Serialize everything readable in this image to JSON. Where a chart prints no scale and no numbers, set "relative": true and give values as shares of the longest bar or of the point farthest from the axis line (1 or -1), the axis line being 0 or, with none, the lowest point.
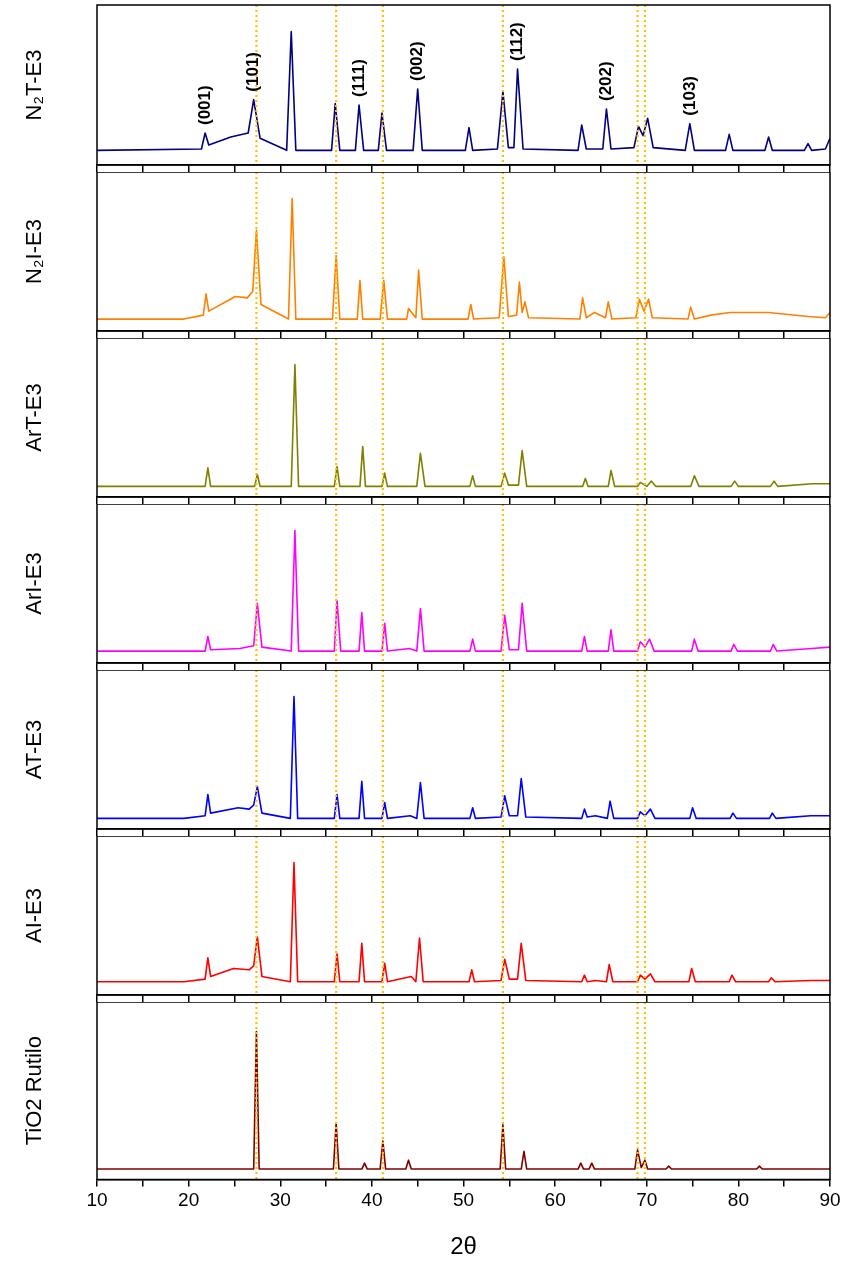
{
  "chart_data": [
    {
      "type": "line",
      "ylabel": "N₂T-E3",
      "relative": true,
      "marker": "none",
      "xlim": [
        10,
        90
      ],
      "xticks": [
        10,
        {
          "value": 15,
          "label": null
        },
        20,
        {
          "value": 25,
          "label": null
        },
        30,
        {
          "value": 35,
          "label": null
        },
        40,
        {
          "value": 45,
          "label": null
        },
        50,
        {
          "value": 55,
          "label": null
        },
        60,
        {
          "value": 65,
          "label": null
        },
        70,
        {
          "value": 75,
          "label": null
        },
        80,
        {
          "value": 85,
          "label": null
        },
        90
      ],
      "tick_labels": false,
      "ref_lines": [
        {
          "axis": "x",
          "value": 27.4,
          "color": "#ffc000",
          "line_style": "dotted"
        },
        {
          "axis": "x",
          "value": 36.1,
          "color": "#ffc000",
          "line_style": "dotted"
        },
        {
          "axis": "x",
          "value": 41.2,
          "color": "#ffc000",
          "line_style": "dotted"
        },
        {
          "axis": "x",
          "value": 54.3,
          "color": "#ffc000",
          "line_style": "dotted"
        },
        {
          "axis": "x",
          "value": 69.0,
          "color": "#ffc000",
          "line_style": "dotted"
        },
        {
          "axis": "x",
          "value": 69.8,
          "color": "#ffc000",
          "line_style": "dotted"
        }
      ],
      "annotations": [
        {
          "text": "(001)",
          "x": 21.8,
          "y": 0.24
        },
        {
          "text": "(101)",
          "x": 27.1,
          "y": 0.49
        },
        {
          "text": "(111)",
          "x": 38.6,
          "y": 0.45
        },
        {
          "text": "(002)",
          "x": 45.0,
          "y": 0.57
        },
        {
          "text": "(112)",
          "x": 55.9,
          "y": 0.72
        },
        {
          "text": "(202)",
          "x": 65.6,
          "y": 0.42
        },
        {
          "text": "(103)",
          "x": 74.7,
          "y": 0.31
        }
      ],
      "series": [
        {
          "color": "#000080",
          "x": [
            10,
            21.4,
            21.8,
            22.2,
            24.6,
            26.5,
            27.1,
            27.8,
            30.7,
            31.2,
            31.7,
            35.6,
            36.0,
            36.5,
            38.2,
            38.6,
            39.1,
            40.7,
            41.1,
            41.6,
            44.5,
            45.0,
            45.5,
            50.2,
            50.6,
            51.0,
            53.7,
            54.3,
            54.9,
            55.5,
            55.9,
            56.5,
            62.5,
            62.9,
            63.4,
            65.2,
            65.6,
            66.1,
            68.6,
            69.1,
            69.6,
            70.1,
            70.7,
            74.2,
            74.7,
            75.2,
            78.6,
            79.0,
            79.4,
            82.9,
            83.3,
            83.7,
            87.2,
            87.6,
            88.0,
            89.5,
            90
          ],
          "values": [
            0.11,
            0.12,
            0.24,
            0.15,
            0.21,
            0.24,
            0.49,
            0.2,
            0.11,
            1.0,
            0.11,
            0.11,
            0.46,
            0.11,
            0.11,
            0.45,
            0.11,
            0.11,
            0.39,
            0.11,
            0.11,
            0.57,
            0.11,
            0.11,
            0.28,
            0.11,
            0.12,
            0.55,
            0.13,
            0.13,
            0.72,
            0.12,
            0.11,
            0.3,
            0.12,
            0.12,
            0.42,
            0.12,
            0.13,
            0.29,
            0.22,
            0.35,
            0.13,
            0.11,
            0.31,
            0.11,
            0.11,
            0.23,
            0.11,
            0.11,
            0.21,
            0.11,
            0.11,
            0.16,
            0.11,
            0.12,
            0.2
          ]
        }
      ]
    },
    {
      "type": "line",
      "ylabel": "N₂I-E3",
      "relative": true,
      "marker": "none",
      "xlim": [
        10,
        90
      ],
      "xticks": [
        10,
        {
          "value": 15,
          "label": null
        },
        20,
        {
          "value": 25,
          "label": null
        },
        30,
        {
          "value": 35,
          "label": null
        },
        40,
        {
          "value": 45,
          "label": null
        },
        50,
        {
          "value": 55,
          "label": null
        },
        60,
        {
          "value": 65,
          "label": null
        },
        70,
        {
          "value": 75,
          "label": null
        },
        80,
        {
          "value": 85,
          "label": null
        },
        90
      ],
      "tick_labels": false,
      "ref_lines": [
        {
          "axis": "x",
          "value": 27.4,
          "color": "#ffc000",
          "line_style": "dotted"
        },
        {
          "axis": "x",
          "value": 36.1,
          "color": "#ffc000",
          "line_style": "dotted"
        },
        {
          "axis": "x",
          "value": 41.2,
          "color": "#ffc000",
          "line_style": "dotted"
        },
        {
          "axis": "x",
          "value": 54.3,
          "color": "#ffc000",
          "line_style": "dotted"
        },
        {
          "axis": "x",
          "value": 69.0,
          "color": "#ffc000",
          "line_style": "dotted"
        },
        {
          "axis": "x",
          "value": 69.8,
          "color": "#ffc000",
          "line_style": "dotted"
        }
      ],
      "series": [
        {
          "color": "#ff8000",
          "x": [
            10,
            19.5,
            21.6,
            21.9,
            22.2,
            25.1,
            26.4,
            27.0,
            27.4,
            27.9,
            30.9,
            31.3,
            31.7,
            35.7,
            36.1,
            36.5,
            38.4,
            38.7,
            39.0,
            40.9,
            41.3,
            41.7,
            43.8,
            44.0,
            44.8,
            45.1,
            45.5,
            50.5,
            50.8,
            51.1,
            53.9,
            54.4,
            54.9,
            55.8,
            56.1,
            56.4,
            56.7,
            57.1,
            62.7,
            63.0,
            63.4,
            64.3,
            65.5,
            65.8,
            66.2,
            68.8,
            69.2,
            69.7,
            70.2,
            70.6,
            74.5,
            74.8,
            75.2,
            77.0,
            79.1,
            83.3,
            87.6,
            89.5,
            90
          ],
          "values": [
            0.09,
            0.09,
            0.12,
            0.28,
            0.15,
            0.26,
            0.25,
            0.3,
            0.76,
            0.2,
            0.09,
            1.0,
            0.09,
            0.09,
            0.57,
            0.09,
            0.09,
            0.38,
            0.09,
            0.09,
            0.38,
            0.09,
            0.09,
            0.17,
            0.1,
            0.46,
            0.09,
            0.09,
            0.2,
            0.09,
            0.1,
            0.56,
            0.11,
            0.12,
            0.37,
            0.14,
            0.22,
            0.1,
            0.09,
            0.25,
            0.1,
            0.14,
            0.1,
            0.22,
            0.09,
            0.1,
            0.24,
            0.15,
            0.24,
            0.1,
            0.09,
            0.18,
            0.09,
            0.12,
            0.14,
            0.14,
            0.11,
            0.1,
            0.14
          ]
        }
      ]
    },
    {
      "type": "line",
      "ylabel": "ArT-E3",
      "relative": true,
      "marker": "none",
      "xlim": [
        10,
        90
      ],
      "xticks": [
        10,
        {
          "value": 15,
          "label": null
        },
        20,
        {
          "value": 25,
          "label": null
        },
        30,
        {
          "value": 35,
          "label": null
        },
        40,
        {
          "value": 45,
          "label": null
        },
        50,
        {
          "value": 55,
          "label": null
        },
        60,
        {
          "value": 65,
          "label": null
        },
        70,
        {
          "value": 75,
          "label": null
        },
        80,
        {
          "value": 85,
          "label": null
        },
        90
      ],
      "tick_labels": false,
      "ref_lines": [
        {
          "axis": "x",
          "value": 27.4,
          "color": "#ffc000",
          "line_style": "dotted"
        },
        {
          "axis": "x",
          "value": 36.1,
          "color": "#ffc000",
          "line_style": "dotted"
        },
        {
          "axis": "x",
          "value": 41.2,
          "color": "#ffc000",
          "line_style": "dotted"
        },
        {
          "axis": "x",
          "value": 54.3,
          "color": "#ffc000",
          "line_style": "dotted"
        },
        {
          "axis": "x",
          "value": 69.0,
          "color": "#ffc000",
          "line_style": "dotted"
        },
        {
          "axis": "x",
          "value": 69.8,
          "color": "#ffc000",
          "line_style": "dotted"
        }
      ],
      "series": [
        {
          "color": "#808000",
          "x": [
            10,
            21.8,
            22.1,
            22.4,
            27.2,
            27.5,
            27.8,
            31.2,
            31.6,
            32.0,
            35.9,
            36.2,
            36.5,
            38.7,
            39.0,
            39.3,
            41.1,
            41.4,
            41.7,
            44.9,
            45.3,
            45.8,
            50.7,
            51.0,
            51.3,
            54.1,
            54.5,
            54.9,
            56.0,
            56.4,
            56.9,
            63.0,
            63.3,
            63.6,
            65.8,
            66.1,
            66.5,
            69.0,
            69.3,
            70.0,
            70.5,
            71.0,
            74.8,
            75.2,
            75.7,
            79.2,
            79.6,
            80.0,
            83.5,
            83.9,
            84.3,
            88.1,
            90
          ],
          "values": [
            0.08,
            0.08,
            0.22,
            0.08,
            0.08,
            0.17,
            0.08,
            0.08,
            1.0,
            0.08,
            0.08,
            0.23,
            0.08,
            0.08,
            0.38,
            0.08,
            0.08,
            0.18,
            0.08,
            0.08,
            0.33,
            0.08,
            0.08,
            0.16,
            0.08,
            0.08,
            0.18,
            0.09,
            0.09,
            0.35,
            0.08,
            0.08,
            0.14,
            0.08,
            0.08,
            0.2,
            0.08,
            0.08,
            0.11,
            0.08,
            0.12,
            0.08,
            0.08,
            0.16,
            0.08,
            0.08,
            0.12,
            0.08,
            0.08,
            0.12,
            0.08,
            0.1,
            0.1
          ]
        }
      ]
    },
    {
      "type": "line",
      "ylabel": "ArI-E3",
      "relative": true,
      "marker": "none",
      "xlim": [
        10,
        90
      ],
      "xticks": [
        10,
        {
          "value": 15,
          "label": null
        },
        20,
        {
          "value": 25,
          "label": null
        },
        30,
        {
          "value": 35,
          "label": null
        },
        40,
        {
          "value": 45,
          "label": null
        },
        50,
        {
          "value": 55,
          "label": null
        },
        60,
        {
          "value": 65,
          "label": null
        },
        70,
        {
          "value": 75,
          "label": null
        },
        80,
        {
          "value": 85,
          "label": null
        },
        90
      ],
      "tick_labels": false,
      "ref_lines": [
        {
          "axis": "x",
          "value": 27.4,
          "color": "#ffc000",
          "line_style": "dotted"
        },
        {
          "axis": "x",
          "value": 36.1,
          "color": "#ffc000",
          "line_style": "dotted"
        },
        {
          "axis": "x",
          "value": 41.2,
          "color": "#ffc000",
          "line_style": "dotted"
        },
        {
          "axis": "x",
          "value": 54.3,
          "color": "#ffc000",
          "line_style": "dotted"
        },
        {
          "axis": "x",
          "value": 69.0,
          "color": "#ffc000",
          "line_style": "dotted"
        },
        {
          "axis": "x",
          "value": 69.8,
          "color": "#ffc000",
          "line_style": "dotted"
        }
      ],
      "series": [
        {
          "color": "#ff00ff",
          "x": [
            10,
            21.8,
            22.1,
            22.4,
            25.6,
            27.1,
            27.5,
            28.0,
            31.2,
            31.6,
            32.0,
            35.9,
            36.2,
            36.6,
            38.6,
            38.9,
            39.2,
            41.1,
            41.4,
            41.7,
            44.1,
            44.9,
            45.3,
            45.7,
            50.7,
            51.0,
            51.3,
            54.1,
            54.5,
            55.0,
            56.0,
            56.4,
            56.9,
            62.9,
            63.2,
            63.5,
            65.8,
            66.1,
            66.4,
            69.0,
            69.3,
            69.8,
            70.3,
            70.8,
            74.9,
            75.2,
            75.6,
            79.2,
            79.5,
            79.9,
            83.5,
            83.8,
            84.2,
            88.0,
            90
          ],
          "values": [
            0.09,
            0.09,
            0.2,
            0.1,
            0.11,
            0.13,
            0.45,
            0.12,
            0.09,
            1.0,
            0.09,
            0.09,
            0.47,
            0.09,
            0.09,
            0.38,
            0.09,
            0.09,
            0.3,
            0.09,
            0.11,
            0.09,
            0.41,
            0.09,
            0.09,
            0.18,
            0.09,
            0.09,
            0.36,
            0.1,
            0.1,
            0.45,
            0.09,
            0.09,
            0.2,
            0.09,
            0.09,
            0.25,
            0.09,
            0.09,
            0.16,
            0.12,
            0.18,
            0.09,
            0.09,
            0.18,
            0.09,
            0.09,
            0.14,
            0.09,
            0.09,
            0.14,
            0.09,
            0.11,
            0.12
          ]
        }
      ]
    },
    {
      "type": "line",
      "ylabel": "AT-E3",
      "relative": true,
      "marker": "none",
      "xlim": [
        10,
        90
      ],
      "xticks": [
        10,
        {
          "value": 15,
          "label": null
        },
        20,
        {
          "value": 25,
          "label": null
        },
        30,
        {
          "value": 35,
          "label": null
        },
        40,
        {
          "value": 45,
          "label": null
        },
        50,
        {
          "value": 55,
          "label": null
        },
        60,
        {
          "value": 65,
          "label": null
        },
        70,
        {
          "value": 75,
          "label": null
        },
        80,
        {
          "value": 85,
          "label": null
        },
        90
      ],
      "tick_labels": false,
      "ref_lines": [
        {
          "axis": "x",
          "value": 27.4,
          "color": "#ffc000",
          "line_style": "dotted"
        },
        {
          "axis": "x",
          "value": 36.1,
          "color": "#ffc000",
          "line_style": "dotted"
        },
        {
          "axis": "x",
          "value": 41.2,
          "color": "#ffc000",
          "line_style": "dotted"
        },
        {
          "axis": "x",
          "value": 54.3,
          "color": "#ffc000",
          "line_style": "dotted"
        },
        {
          "axis": "x",
          "value": 69.0,
          "color": "#ffc000",
          "line_style": "dotted"
        },
        {
          "axis": "x",
          "value": 69.8,
          "color": "#ffc000",
          "line_style": "dotted"
        }
      ],
      "series": [
        {
          "color": "#0000ff",
          "x": [
            10,
            19.5,
            21.8,
            22.1,
            22.4,
            25.4,
            26.6,
            27.1,
            27.5,
            28.0,
            31.1,
            31.5,
            31.9,
            35.9,
            36.2,
            36.5,
            38.6,
            38.9,
            39.2,
            41.1,
            41.4,
            41.7,
            44.2,
            44.9,
            45.3,
            45.7,
            50.7,
            51.0,
            51.3,
            54.1,
            54.5,
            55.0,
            55.9,
            56.3,
            56.8,
            62.9,
            63.2,
            63.5,
            64.4,
            65.7,
            66.0,
            66.4,
            69.0,
            69.3,
            69.8,
            70.4,
            70.9,
            74.7,
            75.0,
            75.4,
            79.1,
            79.4,
            79.8,
            83.4,
            83.7,
            84.1,
            87.9,
            90
          ],
          "values": [
            0.08,
            0.08,
            0.1,
            0.26,
            0.12,
            0.16,
            0.15,
            0.18,
            0.32,
            0.12,
            0.08,
            1.0,
            0.08,
            0.08,
            0.26,
            0.08,
            0.08,
            0.36,
            0.08,
            0.08,
            0.2,
            0.08,
            0.1,
            0.08,
            0.35,
            0.08,
            0.08,
            0.16,
            0.08,
            0.09,
            0.25,
            0.1,
            0.1,
            0.38,
            0.09,
            0.08,
            0.15,
            0.09,
            0.1,
            0.08,
            0.21,
            0.08,
            0.08,
            0.13,
            0.1,
            0.15,
            0.08,
            0.08,
            0.16,
            0.08,
            0.08,
            0.12,
            0.08,
            0.08,
            0.12,
            0.08,
            0.1,
            0.1
          ]
        }
      ]
    },
    {
      "type": "line",
      "ylabel": "AI-E3",
      "relative": true,
      "marker": "none",
      "xlim": [
        10,
        90
      ],
      "xticks": [
        10,
        {
          "value": 15,
          "label": null
        },
        20,
        {
          "value": 25,
          "label": null
        },
        30,
        {
          "value": 35,
          "label": null
        },
        40,
        {
          "value": 45,
          "label": null
        },
        50,
        {
          "value": 55,
          "label": null
        },
        60,
        {
          "value": 65,
          "label": null
        },
        70,
        {
          "value": 75,
          "label": null
        },
        80,
        {
          "value": 85,
          "label": null
        },
        90
      ],
      "tick_labels": false,
      "ref_lines": [
        {
          "axis": "x",
          "value": 27.4,
          "color": "#ffc000",
          "line_style": "dotted"
        },
        {
          "axis": "x",
          "value": 36.1,
          "color": "#ffc000",
          "line_style": "dotted"
        },
        {
          "axis": "x",
          "value": 41.2,
          "color": "#ffc000",
          "line_style": "dotted"
        },
        {
          "axis": "x",
          "value": 54.3,
          "color": "#ffc000",
          "line_style": "dotted"
        },
        {
          "axis": "x",
          "value": 69.0,
          "color": "#ffc000",
          "line_style": "dotted"
        },
        {
          "axis": "x",
          "value": 69.8,
          "color": "#ffc000",
          "line_style": "dotted"
        }
      ],
      "series": [
        {
          "color": "#ff0000",
          "x": [
            10,
            19.5,
            21.8,
            22.1,
            22.4,
            24.9,
            26.6,
            27.1,
            27.5,
            28.0,
            31.1,
            31.5,
            31.9,
            35.9,
            36.2,
            36.5,
            38.6,
            38.9,
            39.2,
            41.1,
            41.4,
            41.7,
            44.3,
            44.8,
            45.2,
            45.6,
            50.6,
            50.9,
            51.2,
            54.1,
            54.5,
            55.0,
            55.9,
            56.3,
            56.8,
            62.9,
            63.2,
            63.5,
            64.4,
            65.6,
            65.9,
            66.3,
            69.0,
            69.3,
            69.8,
            70.4,
            70.9,
            74.6,
            74.9,
            75.3,
            79.0,
            79.3,
            79.7,
            83.3,
            83.6,
            84.0,
            87.9,
            90
          ],
          "values": [
            0.1,
            0.1,
            0.12,
            0.28,
            0.14,
            0.2,
            0.19,
            0.22,
            0.44,
            0.14,
            0.1,
            1.0,
            0.1,
            0.1,
            0.31,
            0.1,
            0.1,
            0.39,
            0.1,
            0.1,
            0.24,
            0.1,
            0.14,
            0.1,
            0.43,
            0.1,
            0.1,
            0.19,
            0.1,
            0.11,
            0.27,
            0.12,
            0.12,
            0.39,
            0.11,
            0.1,
            0.15,
            0.1,
            0.11,
            0.1,
            0.23,
            0.1,
            0.1,
            0.15,
            0.12,
            0.16,
            0.1,
            0.1,
            0.2,
            0.1,
            0.1,
            0.15,
            0.1,
            0.1,
            0.13,
            0.1,
            0.11,
            0.11
          ]
        }
      ]
    },
    {
      "type": "line",
      "ylabel": "TiO2 Rutilo",
      "xlabel": "2θ",
      "relative": true,
      "marker": "none",
      "xlim": [
        10,
        90
      ],
      "xticks": [
        10,
        {
          "value": 15,
          "label": null
        },
        20,
        {
          "value": 25,
          "label": null
        },
        30,
        {
          "value": 35,
          "label": null
        },
        40,
        {
          "value": 45,
          "label": null
        },
        50,
        {
          "value": 55,
          "label": null
        },
        60,
        {
          "value": 65,
          "label": null
        },
        70,
        {
          "value": 75,
          "label": null
        },
        80,
        {
          "value": 85,
          "label": null
        },
        90
      ],
      "tick_labels": "x",
      "ref_lines": [
        {
          "axis": "x",
          "value": 27.4,
          "color": "#ffc000",
          "line_style": "dotted"
        },
        {
          "axis": "x",
          "value": 36.1,
          "color": "#ffc000",
          "line_style": "dotted"
        },
        {
          "axis": "x",
          "value": 41.2,
          "color": "#ffc000",
          "line_style": "dotted"
        },
        {
          "axis": "x",
          "value": 54.3,
          "color": "#ffc000",
          "line_style": "dotted"
        },
        {
          "axis": "x",
          "value": 69.0,
          "color": "#ffc000",
          "line_style": "dotted"
        },
        {
          "axis": "x",
          "value": 69.8,
          "color": "#ffc000",
          "line_style": "dotted"
        }
      ],
      "series": [
        {
          "color": "#800000",
          "x": [
            10,
            27.1,
            27.4,
            27.7,
            35.8,
            36.1,
            36.4,
            38.9,
            39.2,
            39.5,
            40.9,
            41.2,
            41.5,
            43.7,
            44.0,
            44.3,
            54.0,
            54.3,
            54.6,
            56.3,
            56.6,
            56.9,
            62.5,
            62.8,
            63.1,
            63.7,
            64.0,
            64.3,
            68.7,
            69.0,
            69.4,
            69.8,
            70.1,
            72.1,
            72.4,
            72.7,
            82.0,
            82.3,
            82.6,
            90
          ],
          "values": [
            0.07,
            0.07,
            1.0,
            0.07,
            0.07,
            0.38,
            0.07,
            0.07,
            0.11,
            0.07,
            0.07,
            0.26,
            0.07,
            0.07,
            0.13,
            0.07,
            0.07,
            0.37,
            0.07,
            0.07,
            0.19,
            0.07,
            0.07,
            0.11,
            0.07,
            0.07,
            0.11,
            0.07,
            0.07,
            0.2,
            0.08,
            0.13,
            0.07,
            0.07,
            0.09,
            0.07,
            0.07,
            0.09,
            0.07,
            0.07
          ]
        }
      ]
    }
  ]
}
